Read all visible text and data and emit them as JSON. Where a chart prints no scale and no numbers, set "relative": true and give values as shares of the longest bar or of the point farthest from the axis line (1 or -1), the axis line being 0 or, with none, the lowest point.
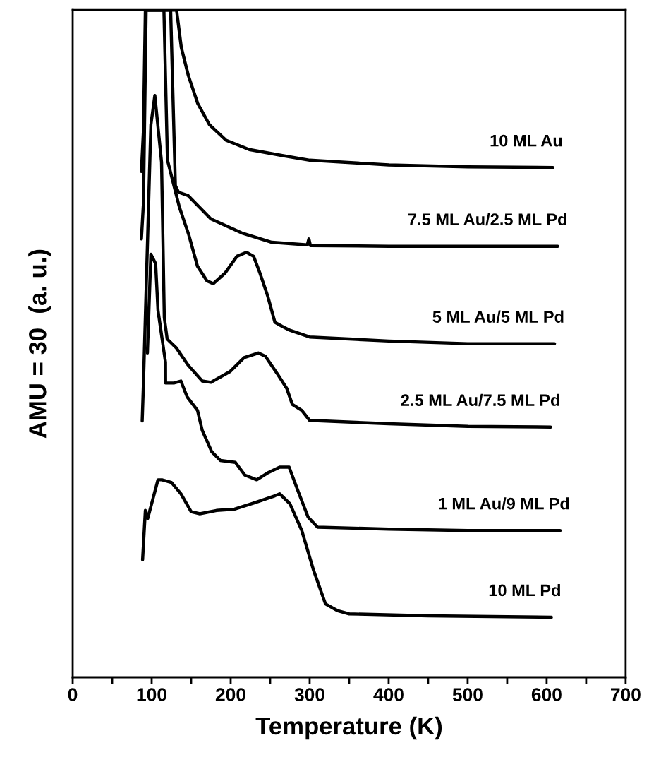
{
  "chart_data": {
    "type": "line",
    "xlabel": "Temperature (K)",
    "ylabel": "AMU = 30  (a. u.)",
    "relative": true,
    "xlim": [
      0,
      700
    ],
    "xticks": [
      0,
      {
        "value": 50,
        "label": null
      },
      100,
      {
        "value": 150,
        "label": null
      },
      200,
      {
        "value": 250,
        "label": null
      },
      300,
      {
        "value": 350,
        "label": null
      },
      400,
      {
        "value": 450,
        "label": null
      },
      500,
      {
        "value": 550,
        "label": null
      },
      600,
      {
        "value": 650,
        "label": null
      },
      700
    ],
    "grid": false,
    "legend": false,
    "marker": "none",
    "line_style": "solid",
    "series": [
      {
        "name": "10 ML Au",
        "color": "#000000",
        "x": [
          87,
          89.6,
          92,
          131.5,
          137.5,
          146.4,
          158.3,
          173.2,
          194,
          223.5,
          265.4,
          300,
          400,
          500,
          608
        ],
        "values": [
          0.758,
          0.82,
          1.0,
          1.0,
          0.944,
          0.902,
          0.86,
          0.828,
          0.805,
          0.791,
          0.782,
          0.775,
          0.768,
          0.765,
          0.764
        ]
      },
      {
        "name": "7.5 ML Au/2.5 ML Pd",
        "color": "#000000",
        "x": [
          87,
          89.6,
          93,
          124,
          130,
          134,
          146,
          175,
          214,
          252,
          297,
          299,
          301,
          400,
          500,
          614
        ],
        "values": [
          0.657,
          0.711,
          1.0,
          1.0,
          0.737,
          0.727,
          0.722,
          0.687,
          0.666,
          0.652,
          0.648,
          0.657,
          0.647,
          0.646,
          0.646,
          0.646
        ]
      },
      {
        "name": "5 ML Au/5 ML Pd",
        "color": "#000000",
        "x": [
          96,
          115.5,
          120,
          126,
          135,
          147,
          158,
          170,
          178,
          193,
          208,
          220,
          229,
          237,
          247,
          256,
          265,
          275,
          300,
          400,
          500,
          610
        ],
        "values": [
          1.0,
          1.0,
          0.775,
          0.747,
          0.705,
          0.663,
          0.616,
          0.594,
          0.59,
          0.606,
          0.631,
          0.637,
          0.631,
          0.606,
          0.571,
          0.532,
          0.526,
          0.52,
          0.51,
          0.504,
          0.5,
          0.5
        ]
      },
      {
        "name": "2.5 ML Au/7.5 ML Pd",
        "color": "#000000",
        "x": [
          88,
          89.5,
          99,
          104,
          112.5,
          116,
          119.6,
          131,
          146,
          164,
          175,
          199,
          217,
          235,
          244,
          259,
          271,
          278,
          290,
          300,
          400,
          500,
          605
        ],
        "values": [
          0.384,
          0.437,
          0.828,
          0.872,
          0.772,
          0.539,
          0.507,
          0.494,
          0.468,
          0.444,
          0.442,
          0.458,
          0.479,
          0.486,
          0.481,
          0.455,
          0.433,
          0.409,
          0.4,
          0.385,
          0.38,
          0.376,
          0.375
        ]
      },
      {
        "name": "1 ML Au/9 ML Pd",
        "color": "#000000",
        "x": [
          94.6,
          99,
          105,
          108,
          117.5,
          117.6,
          128,
          137,
          145,
          158,
          164,
          176,
          187,
          206,
          218,
          233,
          248,
          262,
          274,
          285,
          298,
          310,
          400,
          500,
          617
        ],
        "values": [
          0.486,
          0.634,
          0.62,
          0.55,
          0.472,
          0.441,
          0.441,
          0.444,
          0.42,
          0.4,
          0.37,
          0.338,
          0.325,
          0.322,
          0.303,
          0.296,
          0.307,
          0.315,
          0.315,
          0.28,
          0.24,
          0.225,
          0.222,
          0.22,
          0.22
        ]
      },
      {
        "name": "10 ML Pd",
        "color": "#000000",
        "x": [
          88.5,
          92,
          95,
          108,
          113,
          125,
          137,
          150,
          161,
          182,
          205,
          229,
          256,
          262,
          275,
          290,
          305,
          320,
          335,
          350,
          450,
          606
        ],
        "values": [
          0.176,
          0.25,
          0.238,
          0.296,
          0.296,
          0.292,
          0.275,
          0.248,
          0.245,
          0.25,
          0.252,
          0.261,
          0.272,
          0.275,
          0.26,
          0.22,
          0.16,
          0.11,
          0.1,
          0.095,
          0.092,
          0.09
        ]
      }
    ]
  }
}
